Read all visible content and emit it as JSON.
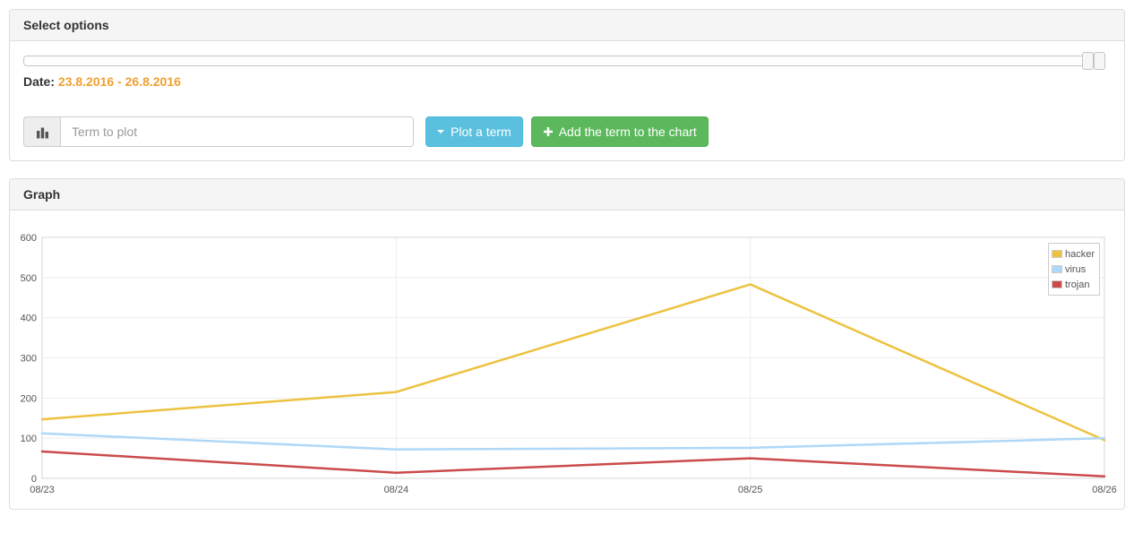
{
  "select_options_panel": {
    "title": "Select options",
    "date_label": "Date:",
    "date_range": "23.8.2016 - 26.8.2016",
    "term_input": {
      "placeholder": "Term to plot",
      "value": ""
    },
    "plot_button_label": "Plot a term",
    "add_button_label": "Add the term to the chart",
    "icons": {
      "term_addon": "bar-chart-icon",
      "plot_button": "caret-down-icon",
      "add_button": "plus-icon"
    }
  },
  "graph_panel": {
    "title": "Graph"
  },
  "colors": {
    "date_accent": "#f0a030",
    "info_button": "#5bc0de",
    "success_button": "#5cb85c",
    "grid_line": "#ededed",
    "grid_border": "#d4d4d4",
    "tick_label": "#545454"
  },
  "chart_data": {
    "type": "line",
    "title": "",
    "xlabel": "",
    "ylabel": "",
    "x": [
      "08/23",
      "08/24",
      "08/25",
      "08/26"
    ],
    "series": [
      {
        "name": "hacker",
        "color": "#edc240",
        "values": [
          147,
          215,
          483,
          95
        ]
      },
      {
        "name": "virus",
        "color": "#afd8f8",
        "values": [
          112,
          72,
          76,
          100
        ]
      },
      {
        "name": "trojan",
        "color": "#cb4b4b",
        "values": [
          67,
          14,
          50,
          5
        ]
      }
    ],
    "ylim": [
      0,
      600
    ],
    "y_ticks": [
      0,
      100,
      200,
      300,
      400,
      500,
      600
    ],
    "grid": true,
    "legend_position": "top-right"
  }
}
